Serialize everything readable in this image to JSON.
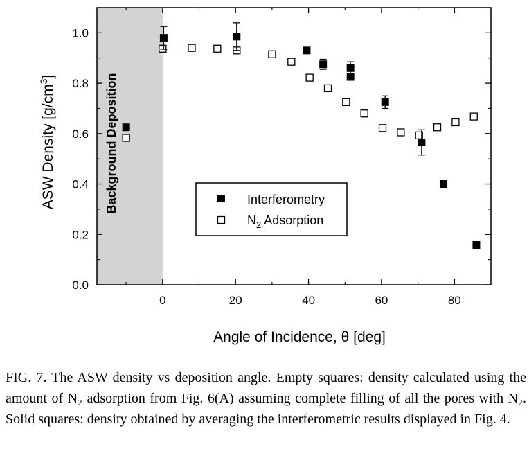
{
  "chart_data": {
    "type": "scatter",
    "title": "",
    "xlabel": "Angle of Incidence, θ  [deg]",
    "ylabel": "ASW Density  [g/cm³]",
    "xlim": [
      -18,
      90
    ],
    "ylim": [
      0,
      1.1
    ],
    "xticks": [
      0,
      20,
      40,
      60,
      80
    ],
    "xtick_labels": [
      "0",
      "20",
      "40",
      "60",
      "80"
    ],
    "yticks": [
      0,
      0.2,
      0.4,
      0.6,
      0.8,
      1.0
    ],
    "ytick_labels": [
      "0.0",
      "0.2",
      "0.4",
      "0.6",
      "0.8",
      "1.0"
    ],
    "grid": false,
    "shaded_region": {
      "x": [
        -18,
        0
      ],
      "color": "#d3d3d3",
      "label": "Background Deposition"
    },
    "legend_position": "center",
    "series": [
      {
        "name": "Interferometry",
        "marker": "filled-square",
        "points": [
          {
            "x": -10,
            "y": 0.625,
            "err": 0
          },
          {
            "x": 0.3,
            "y": 0.98,
            "err": 0.045
          },
          {
            "x": 20.3,
            "y": 0.985,
            "err": 0.055
          },
          {
            "x": 39.5,
            "y": 0.93,
            "err": 0
          },
          {
            "x": 44,
            "y": 0.875,
            "err": 0.02
          },
          {
            "x": 51.5,
            "y": 0.86,
            "err": 0.025
          },
          {
            "x": 51.5,
            "y": 0.825,
            "err": 0
          },
          {
            "x": 61,
            "y": 0.725,
            "err": 0.025
          },
          {
            "x": 71,
            "y": 0.565,
            "err": 0.05
          },
          {
            "x": 77,
            "y": 0.4,
            "err": 0
          },
          {
            "x": 86,
            "y": 0.158,
            "err": 0
          }
        ]
      },
      {
        "name": "N₂ Adsorption",
        "marker": "empty-square",
        "points": [
          {
            "x": -10,
            "y": 0.583
          },
          {
            "x": 0,
            "y": 0.937
          },
          {
            "x": 8,
            "y": 0.94
          },
          {
            "x": 15,
            "y": 0.937
          },
          {
            "x": 20.3,
            "y": 0.93
          },
          {
            "x": 30,
            "y": 0.915
          },
          {
            "x": 35.3,
            "y": 0.885
          },
          {
            "x": 40.3,
            "y": 0.822
          },
          {
            "x": 45.3,
            "y": 0.78
          },
          {
            "x": 50.3,
            "y": 0.725
          },
          {
            "x": 55.3,
            "y": 0.68
          },
          {
            "x": 60.3,
            "y": 0.622
          },
          {
            "x": 65.3,
            "y": 0.605
          },
          {
            "x": 70.3,
            "y": 0.593
          },
          {
            "x": 75.3,
            "y": 0.625
          },
          {
            "x": 80.3,
            "y": 0.645
          },
          {
            "x": 85.3,
            "y": 0.668
          }
        ]
      }
    ]
  },
  "caption": {
    "text": "FIG. 7. The ASW density vs deposition angle. Empty squares: density calculated using the amount of N₂ adsorption from Fig. 6(A) assuming complete filling of all the pores with N₂. Solid squares: density obtained by averaging the interferometric results displayed in Fig. 4."
  }
}
